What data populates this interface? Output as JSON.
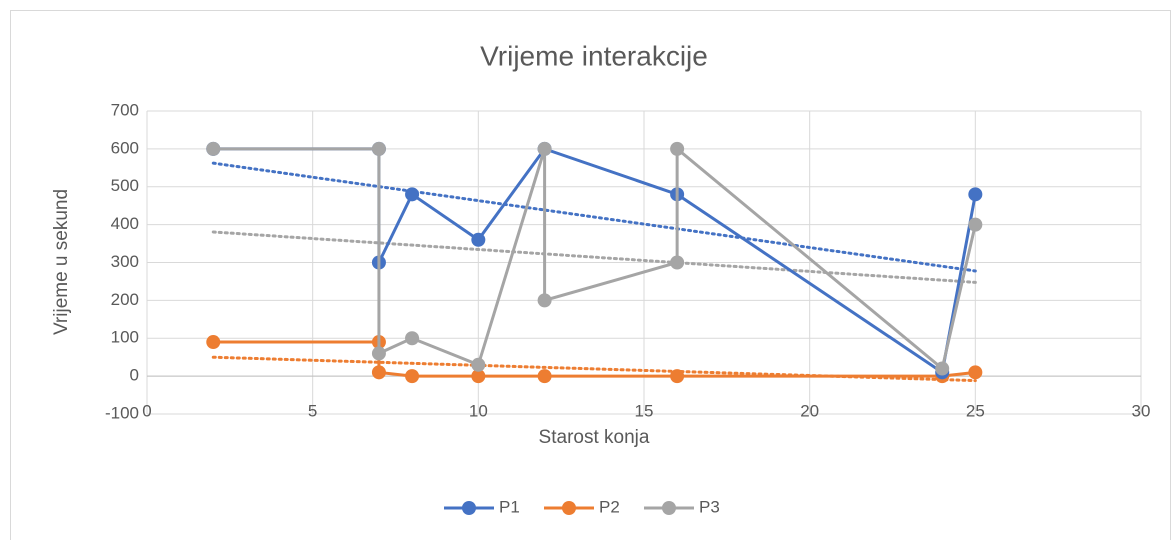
{
  "chart_data": {
    "type": "scatter-line",
    "title": "Vrijeme interakcije",
    "x_label": "Starost konja",
    "y_label": "Vrijeme u sekund",
    "xlim": [
      0,
      30
    ],
    "xticks": [
      0,
      5,
      10,
      15,
      20,
      25,
      30
    ],
    "ylim": [
      -100,
      700
    ],
    "yticks": [
      -100,
      0,
      100,
      200,
      300,
      400,
      500,
      600,
      700
    ],
    "grid": true,
    "trendline": "linear",
    "legend": "bottom",
    "series": [
      {
        "name": "P1",
        "color": "#4472c4",
        "x": [
          2,
          7,
          7,
          8,
          10,
          12,
          16,
          24,
          25
        ],
        "values": [
          600,
          600,
          300,
          480,
          360,
          600,
          480,
          10,
          480
        ]
      },
      {
        "name": "P2",
        "color": "#ed7d31",
        "x": [
          2,
          7,
          7,
          8,
          10,
          12,
          16,
          24,
          25
        ],
        "values": [
          90,
          90,
          10,
          0,
          0,
          0,
          0,
          0,
          10
        ]
      },
      {
        "name": "P3",
        "color": "#a5a5a5",
        "x": [
          2,
          7,
          7,
          8,
          10,
          12,
          12,
          16,
          16,
          24,
          25
        ],
        "values": [
          600,
          600,
          60,
          100,
          30,
          600,
          200,
          300,
          600,
          20,
          400
        ]
      }
    ]
  }
}
